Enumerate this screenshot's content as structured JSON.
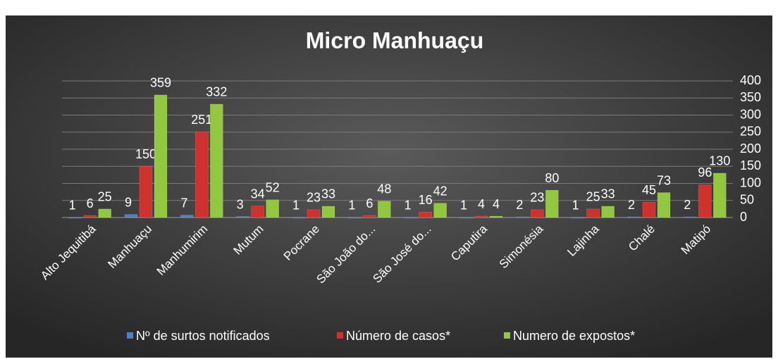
{
  "chart_data": {
    "type": "bar",
    "title": "Micro Manhuaçu",
    "categories": [
      "Alto Jequitibá",
      "Manhuaçu",
      "Manhumirim",
      "Mutum",
      "Pocrane",
      "São João do...",
      "São José do...",
      "Caputira",
      "Simonésia",
      "Lajinha",
      "Chalé",
      "Matipó"
    ],
    "series": [
      {
        "name": "Nº de surtos notificados",
        "color": "#4f81bd",
        "values": [
          1,
          9,
          7,
          3,
          1,
          1,
          1,
          1,
          2,
          1,
          2,
          2
        ]
      },
      {
        "name": "Número de casos*",
        "color": "#d0312d",
        "values": [
          6,
          150,
          251,
          34,
          23,
          6,
          16,
          4,
          23,
          25,
          45,
          96
        ]
      },
      {
        "name": "Numero de expostos*",
        "color": "#92c83e",
        "values": [
          25,
          359,
          332,
          52,
          33,
          48,
          42,
          4,
          80,
          33,
          73,
          130
        ]
      }
    ],
    "ylim": [
      0,
      400
    ],
    "yticks": [
      0,
      50,
      100,
      150,
      200,
      250,
      300,
      350,
      400
    ],
    "grid": true,
    "legend": "bottom"
  }
}
